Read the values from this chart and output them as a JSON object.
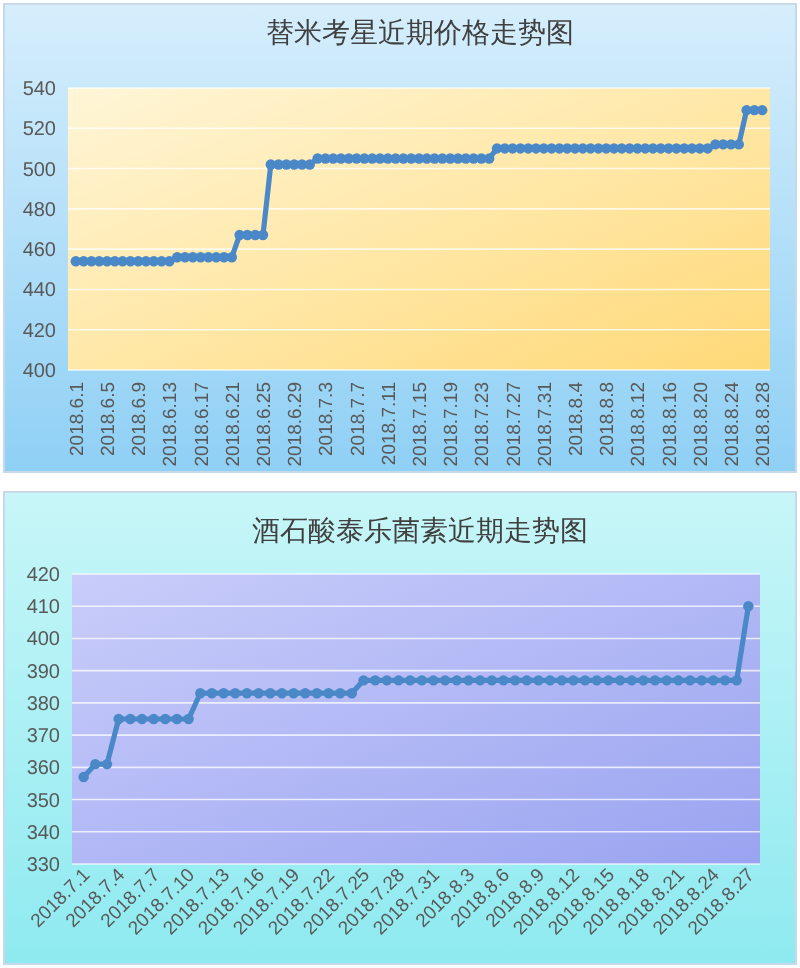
{
  "chart_data": [
    {
      "type": "line",
      "title": "替米考星近期价格走势图",
      "grid": "y",
      "marker": "circle",
      "xlim": [
        "2018-05-31",
        "2018-08-29"
      ],
      "ylim": [
        400,
        540
      ],
      "yticks": [
        400,
        420,
        440,
        460,
        480,
        500,
        520,
        540
      ],
      "xticks": [
        {
          "value": "2018-06-01",
          "label": "2018.6.1"
        },
        {
          "value": "2018-06-05",
          "label": "2018.6.5"
        },
        {
          "value": "2018-06-09",
          "label": "2018.6.9"
        },
        {
          "value": "2018-06-13",
          "label": "2018.6.13"
        },
        {
          "value": "2018-06-17",
          "label": "2018.6.17"
        },
        {
          "value": "2018-06-21",
          "label": "2018.6.21"
        },
        {
          "value": "2018-06-25",
          "label": "2018.6.25"
        },
        {
          "value": "2018-06-29",
          "label": "2018.6.29"
        },
        {
          "value": "2018-07-03",
          "label": "2018.7.3"
        },
        {
          "value": "2018-07-07",
          "label": "2018.7.7"
        },
        {
          "value": "2018-07-11",
          "label": "2018.7.11"
        },
        {
          "value": "2018-07-15",
          "label": "2018.7.15"
        },
        {
          "value": "2018-07-19",
          "label": "2018.7.19"
        },
        {
          "value": "2018-07-23",
          "label": "2018.7.23"
        },
        {
          "value": "2018-07-27",
          "label": "2018.7.27"
        },
        {
          "value": "2018-07-31",
          "label": "2018.7.31"
        },
        {
          "value": "2018-08-04",
          "label": "2018.8.4"
        },
        {
          "value": "2018-08-08",
          "label": "2018.8.8"
        },
        {
          "value": "2018-08-12",
          "label": "2018.8.12"
        },
        {
          "value": "2018-08-16",
          "label": "2018.8.16"
        },
        {
          "value": "2018-08-20",
          "label": "2018.8.20"
        },
        {
          "value": "2018-08-24",
          "label": "2018.8.24"
        },
        {
          "value": "2018-08-28",
          "label": "2018.8.28"
        }
      ],
      "x": [
        "2018-06-01",
        "2018-06-02",
        "2018-06-03",
        "2018-06-04",
        "2018-06-05",
        "2018-06-06",
        "2018-06-07",
        "2018-06-08",
        "2018-06-09",
        "2018-06-10",
        "2018-06-11",
        "2018-06-12",
        "2018-06-13",
        "2018-06-14",
        "2018-06-15",
        "2018-06-16",
        "2018-06-17",
        "2018-06-18",
        "2018-06-19",
        "2018-06-20",
        "2018-06-21",
        "2018-06-22",
        "2018-06-23",
        "2018-06-24",
        "2018-06-25",
        "2018-06-26",
        "2018-06-27",
        "2018-06-28",
        "2018-06-29",
        "2018-06-30",
        "2018-07-01",
        "2018-07-02",
        "2018-07-03",
        "2018-07-04",
        "2018-07-05",
        "2018-07-06",
        "2018-07-07",
        "2018-07-08",
        "2018-07-09",
        "2018-07-10",
        "2018-07-11",
        "2018-07-12",
        "2018-07-13",
        "2018-07-14",
        "2018-07-15",
        "2018-07-16",
        "2018-07-17",
        "2018-07-18",
        "2018-07-19",
        "2018-07-20",
        "2018-07-21",
        "2018-07-22",
        "2018-07-23",
        "2018-07-24",
        "2018-07-25",
        "2018-07-26",
        "2018-07-27",
        "2018-07-28",
        "2018-07-29",
        "2018-07-30",
        "2018-07-31",
        "2018-08-01",
        "2018-08-02",
        "2018-08-03",
        "2018-08-04",
        "2018-08-05",
        "2018-08-06",
        "2018-08-07",
        "2018-08-08",
        "2018-08-09",
        "2018-08-10",
        "2018-08-11",
        "2018-08-12",
        "2018-08-13",
        "2018-08-14",
        "2018-08-15",
        "2018-08-16",
        "2018-08-17",
        "2018-08-18",
        "2018-08-19",
        "2018-08-20",
        "2018-08-21",
        "2018-08-22",
        "2018-08-23",
        "2018-08-24",
        "2018-08-25",
        "2018-08-26",
        "2018-08-27",
        "2018-08-28"
      ],
      "series": [
        {
          "color": "#4a88c8",
          "values": [
            454,
            454,
            454,
            454,
            454,
            454,
            454,
            454,
            454,
            454,
            454,
            454,
            454,
            456,
            456,
            456,
            456,
            456,
            456,
            456,
            456,
            467,
            467,
            467,
            467,
            502,
            502,
            502,
            502,
            502,
            502,
            505,
            505,
            505,
            505,
            505,
            505,
            505,
            505,
            505,
            505,
            505,
            505,
            505,
            505,
            505,
            505,
            505,
            505,
            505,
            505,
            505,
            505,
            505,
            510,
            510,
            510,
            510,
            510,
            510,
            510,
            510,
            510,
            510,
            510,
            510,
            510,
            510,
            510,
            510,
            510,
            510,
            510,
            510,
            510,
            510,
            510,
            510,
            510,
            510,
            510,
            510,
            512,
            512,
            512,
            512,
            529,
            529,
            529
          ]
        }
      ]
    },
    {
      "type": "line",
      "title": "酒石酸泰乐菌素近期走势图",
      "grid": "y",
      "marker": "circle",
      "xlim": [
        "2018-06-30",
        "2018-08-28"
      ],
      "ylim": [
        330,
        420
      ],
      "yticks": [
        330,
        340,
        350,
        360,
        370,
        380,
        390,
        400,
        410,
        420
      ],
      "xticks": [
        {
          "value": "2018-07-01",
          "label": "2018.7.1"
        },
        {
          "value": "2018-07-04",
          "label": "2018.7.4"
        },
        {
          "value": "2018-07-07",
          "label": "2018.7.7"
        },
        {
          "value": "2018-07-10",
          "label": "2018.7.10"
        },
        {
          "value": "2018-07-13",
          "label": "2018.7.13"
        },
        {
          "value": "2018-07-16",
          "label": "2018.7.16"
        },
        {
          "value": "2018-07-19",
          "label": "2018.7.19"
        },
        {
          "value": "2018-07-22",
          "label": "2018.7.22"
        },
        {
          "value": "2018-07-25",
          "label": "2018.7.25"
        },
        {
          "value": "2018-07-28",
          "label": "2018.7.28"
        },
        {
          "value": "2018-07-31",
          "label": "2018.7.31"
        },
        {
          "value": "2018-08-03",
          "label": "2018.8.3"
        },
        {
          "value": "2018-08-06",
          "label": "2018.8.6"
        },
        {
          "value": "2018-08-09",
          "label": "2018.8.9"
        },
        {
          "value": "2018-08-12",
          "label": "2018.8.12"
        },
        {
          "value": "2018-08-15",
          "label": "2018.8.15"
        },
        {
          "value": "2018-08-18",
          "label": "2018.8.18"
        },
        {
          "value": "2018-08-21",
          "label": "2018.8.21"
        },
        {
          "value": "2018-08-24",
          "label": "2018.8.24"
        },
        {
          "value": "2018-08-27",
          "label": "2018.8.27"
        }
      ],
      "x": [
        "2018-07-01",
        "2018-07-02",
        "2018-07-03",
        "2018-07-04",
        "2018-07-05",
        "2018-07-06",
        "2018-07-07",
        "2018-07-08",
        "2018-07-09",
        "2018-07-10",
        "2018-07-11",
        "2018-07-12",
        "2018-07-13",
        "2018-07-14",
        "2018-07-15",
        "2018-07-16",
        "2018-07-17",
        "2018-07-18",
        "2018-07-19",
        "2018-07-20",
        "2018-07-21",
        "2018-07-22",
        "2018-07-23",
        "2018-07-24",
        "2018-07-25",
        "2018-07-26",
        "2018-07-27",
        "2018-07-28",
        "2018-07-29",
        "2018-07-30",
        "2018-07-31",
        "2018-08-01",
        "2018-08-02",
        "2018-08-03",
        "2018-08-04",
        "2018-08-05",
        "2018-08-06",
        "2018-08-07",
        "2018-08-08",
        "2018-08-09",
        "2018-08-10",
        "2018-08-11",
        "2018-08-12",
        "2018-08-13",
        "2018-08-14",
        "2018-08-15",
        "2018-08-16",
        "2018-08-17",
        "2018-08-18",
        "2018-08-19",
        "2018-08-20",
        "2018-08-21",
        "2018-08-22",
        "2018-08-23",
        "2018-08-24",
        "2018-08-25",
        "2018-08-26",
        "2018-08-27"
      ],
      "series": [
        {
          "color": "#4a88c8",
          "values": [
            357,
            361,
            361,
            375,
            375,
            375,
            375,
            375,
            375,
            375,
            383,
            383,
            383,
            383,
            383,
            383,
            383,
            383,
            383,
            383,
            383,
            383,
            383,
            383,
            387,
            387,
            387,
            387,
            387,
            387,
            387,
            387,
            387,
            387,
            387,
            387,
            387,
            387,
            387,
            387,
            387,
            387,
            387,
            387,
            387,
            387,
            387,
            387,
            387,
            387,
            387,
            387,
            387,
            387,
            387,
            387,
            387,
            410
          ]
        }
      ]
    }
  ]
}
